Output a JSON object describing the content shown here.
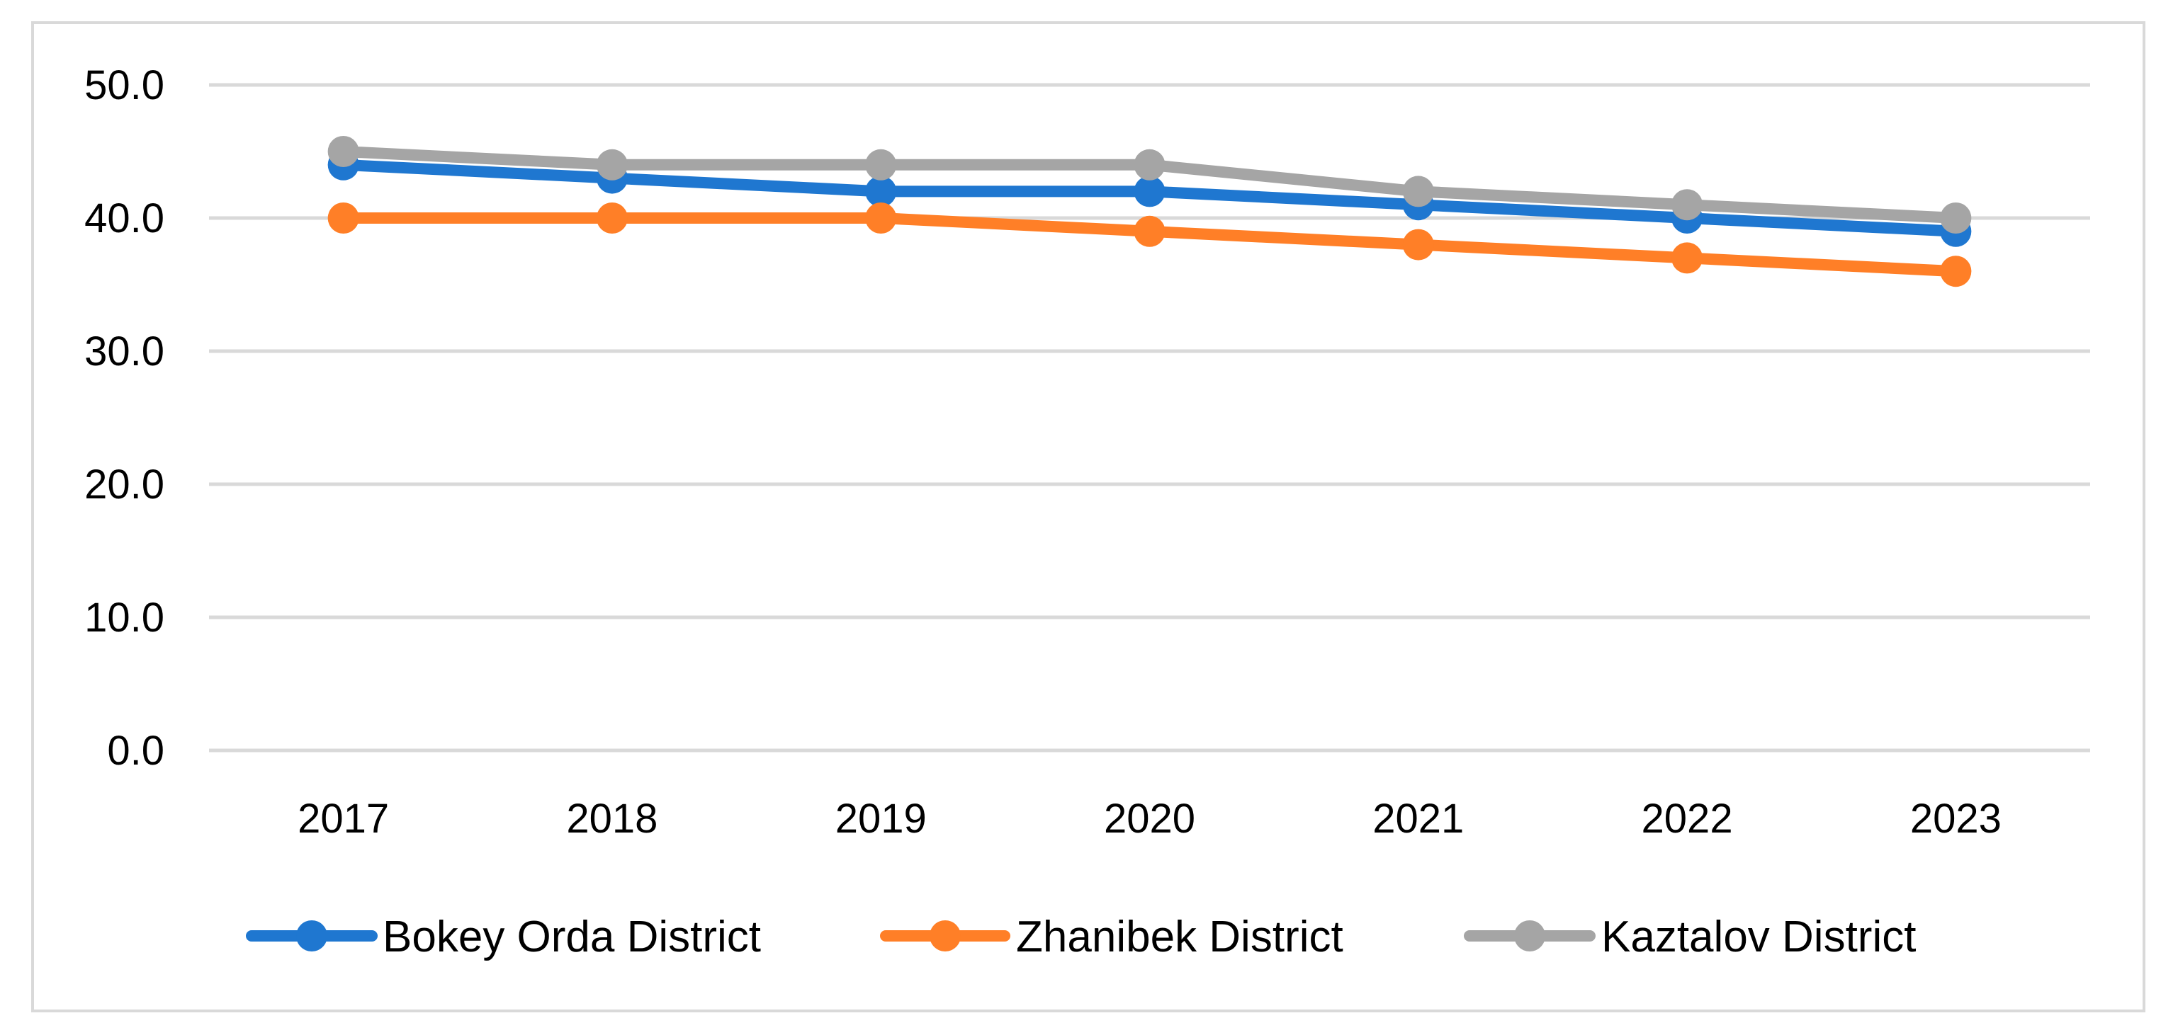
{
  "chart_data": {
    "type": "line",
    "title": "",
    "xlabel": "",
    "ylabel": "",
    "categories": [
      "2017",
      "2018",
      "2019",
      "2020",
      "2021",
      "2022",
      "2023"
    ],
    "ylim": [
      0,
      50
    ],
    "yticks": [
      0,
      10,
      20,
      30,
      40,
      50
    ],
    "ytick_labels": [
      "0.0",
      "10.0",
      "20.0",
      "30.0",
      "40.0",
      "50.0"
    ],
    "grid": true,
    "legend_position": "bottom",
    "series": [
      {
        "name": "Bokey Orda District",
        "color": "#1f77d0",
        "values": [
          44,
          43,
          42,
          42,
          41,
          40,
          39
        ]
      },
      {
        "name": "Zhanibek District",
        "color": "#ff7f27",
        "values": [
          40,
          40,
          40,
          39,
          38,
          37,
          36
        ]
      },
      {
        "name": "Kaztalov District",
        "color": "#a5a5a5",
        "values": [
          45,
          44,
          44,
          44,
          42,
          41,
          40
        ]
      }
    ]
  }
}
